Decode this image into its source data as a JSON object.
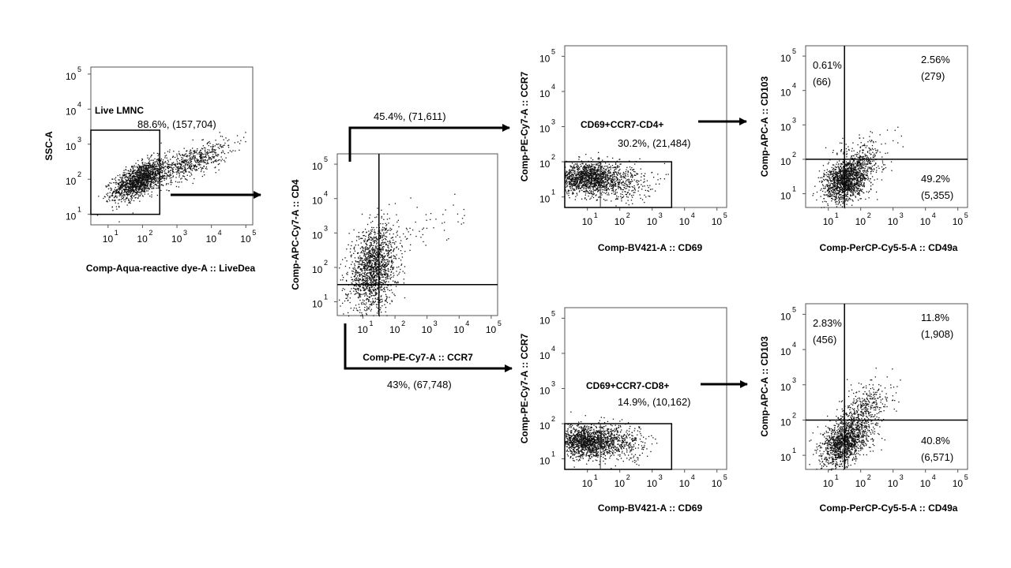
{
  "chart_data": [
    {
      "id": "p1",
      "type": "scatter",
      "xlabel": "Comp-Aqua-reactive dye-A :: LiveDea",
      "ylabel": "SSC-A",
      "xlim": [
        0.5,
        5.2
      ],
      "ylim": [
        0.7,
        5.2
      ],
      "x_ticks": [
        1,
        2,
        3,
        4,
        5
      ],
      "y_ticks": [
        1,
        2,
        3,
        4,
        5
      ],
      "gate": {
        "type": "rectangle",
        "name": "Live LMNC",
        "x": [
          0.5,
          2.5
        ],
        "y": [
          1.0,
          3.4
        ],
        "label": "88.6%, (157,704)"
      },
      "clusters": [
        {
          "cx": 1.9,
          "cy": 2.0,
          "sx": 0.38,
          "sy": 0.28,
          "rho": 0.6,
          "n": 1500
        },
        {
          "cx": 3.4,
          "cy": 2.5,
          "sx": 0.55,
          "sy": 0.3,
          "rho": 0.7,
          "n": 600
        }
      ]
    },
    {
      "id": "p2",
      "type": "scatter",
      "xlabel": "Comp-PE-Cy7-A :: CCR7",
      "ylabel": "Comp-APC-Cy7-A :: CD4",
      "xlim": [
        0.2,
        5.2
      ],
      "ylim": [
        0.6,
        5.3
      ],
      "x_ticks": [
        1,
        2,
        3,
        4,
        5
      ],
      "y_ticks": [
        1,
        2,
        3,
        4,
        5
      ],
      "quadrant": {
        "x": 1.5,
        "y": 1.5
      },
      "clusters": [
        {
          "cx": 1.3,
          "cy": 1.95,
          "sx": 0.38,
          "sy": 0.6,
          "rho": 0.25,
          "n": 1500
        },
        {
          "cx": 2.6,
          "cy": 3.1,
          "sx": 0.8,
          "sy": 0.45,
          "rho": 0.6,
          "n": 70
        }
      ]
    },
    {
      "id": "p3",
      "type": "scatter",
      "xlabel": "Comp-BV421-A :: CD69",
      "ylabel": "Comp-PE-Cy7-A :: CCR7",
      "xlim": [
        0.3,
        5.3
      ],
      "ylim": [
        0.7,
        5.3
      ],
      "x_ticks": [
        1,
        2,
        3,
        4,
        5
      ],
      "y_ticks": [
        1,
        2,
        3,
        4,
        5
      ],
      "divider_x": 1.4,
      "gate": {
        "type": "rectangle",
        "name": "CD69+CCR7-CD4+",
        "x": [
          0.3,
          3.6
        ],
        "y": [
          0.7,
          2.0
        ],
        "label": "30.2%, (21,484)"
      },
      "clusters": [
        {
          "cx": 1.0,
          "cy": 1.55,
          "sx": 0.45,
          "sy": 0.22,
          "rho": 0.0,
          "n": 1300
        },
        {
          "cx": 2.0,
          "cy": 1.45,
          "sx": 0.5,
          "sy": 0.28,
          "rho": 0.0,
          "n": 350
        }
      ]
    },
    {
      "id": "p4",
      "type": "scatter",
      "xlabel": "Comp-PerCP-Cy5-5-A :: CD49a",
      "ylabel": "Comp-APC-A :: CD103",
      "xlim": [
        0.3,
        5.3
      ],
      "ylim": [
        0.6,
        5.3
      ],
      "x_ticks": [
        1,
        2,
        3,
        4,
        5
      ],
      "y_ticks": [
        1,
        2,
        3,
        4,
        5
      ],
      "quadrant": {
        "x": 1.5,
        "y": 2.0
      },
      "quadrants": [
        {
          "pos": "top-left",
          "label": "0.61%",
          "count": "(66)"
        },
        {
          "pos": "top-right",
          "label": "2.56%",
          "count": "(279)"
        },
        {
          "pos": "bottom-right",
          "label": "49.2%",
          "count": "(5,355)"
        }
      ],
      "clusters": [
        {
          "cx": 1.55,
          "cy": 1.4,
          "sx": 0.35,
          "sy": 0.32,
          "rho": 0.35,
          "n": 1400
        },
        {
          "cx": 2.0,
          "cy": 2.0,
          "sx": 0.4,
          "sy": 0.35,
          "rho": 0.3,
          "n": 250
        }
      ]
    },
    {
      "id": "p5",
      "type": "scatter",
      "xlabel": "Comp-BV421-A :: CD69",
      "ylabel": "Comp-PE-Cy7-A :: CCR7",
      "xlim": [
        0.3,
        5.3
      ],
      "ylim": [
        0.7,
        5.3
      ],
      "x_ticks": [
        1,
        2,
        3,
        4,
        5
      ],
      "y_ticks": [
        1,
        2,
        3,
        4,
        5
      ],
      "divider_x": 1.4,
      "gate": {
        "type": "rectangle",
        "name": "CD69+CCR7-CD8+",
        "x": [
          0.3,
          3.6
        ],
        "y": [
          0.7,
          2.0
        ],
        "label": "14.9%, (10,162)"
      },
      "clusters": [
        {
          "cx": 1.0,
          "cy": 1.5,
          "sx": 0.45,
          "sy": 0.22,
          "rho": 0.0,
          "n": 1300
        },
        {
          "cx": 2.0,
          "cy": 1.45,
          "sx": 0.5,
          "sy": 0.25,
          "rho": 0.0,
          "n": 350
        }
      ]
    },
    {
      "id": "p6",
      "type": "scatter",
      "xlabel": "Comp-PerCP-Cy5-5-A :: CD49a",
      "ylabel": "Comp-APC-A :: CD103",
      "xlim": [
        0.3,
        5.3
      ],
      "ylim": [
        0.6,
        5.3
      ],
      "x_ticks": [
        1,
        2,
        3,
        4,
        5
      ],
      "y_ticks": [
        1,
        2,
        3,
        4,
        5
      ],
      "quadrant": {
        "x": 1.5,
        "y": 2.0
      },
      "quadrants": [
        {
          "pos": "top-left",
          "label": "2.83%",
          "count": "(456)"
        },
        {
          "pos": "top-right",
          "label": "11.8%",
          "count": "(1,908)"
        },
        {
          "pos": "bottom-right",
          "label": "40.8%",
          "count": "(6,571)"
        }
      ],
      "clusters": [
        {
          "cx": 1.5,
          "cy": 1.4,
          "sx": 0.35,
          "sy": 0.35,
          "rho": 0.4,
          "n": 1300
        },
        {
          "cx": 2.1,
          "cy": 2.3,
          "sx": 0.4,
          "sy": 0.4,
          "rho": 0.4,
          "n": 400
        }
      ]
    }
  ],
  "gating_arrows": [
    {
      "from": "p2",
      "to": "p3",
      "label": "45.4%, (71,611)"
    },
    {
      "from": "p2",
      "to": "p5",
      "label": "43%, (67,748)"
    }
  ]
}
